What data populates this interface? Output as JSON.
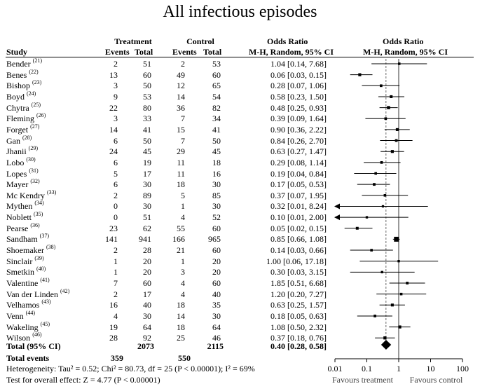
{
  "title": "All infectious episodes",
  "headers": {
    "treatment": "Treatment",
    "control": "Control",
    "or_col": "Odds Ratio",
    "or_plot": "Odds Ratio",
    "study": "Study",
    "events_t": "Events",
    "total_t": "Total",
    "events_c": "Events",
    "total_c": "Total",
    "method_col": "M-H, Random, 95% CI",
    "method_plot": "M-H, Random, 95% CI"
  },
  "studies": [
    {
      "name": "Bender",
      "ref": "(21)",
      "e_t": "2",
      "n_t": "51",
      "e_c": "2",
      "n_c": "53",
      "ci": "1.04 [0.14, 7.68]"
    },
    {
      "name": "Benes",
      "ref": "(22)",
      "e_t": "13",
      "n_t": "60",
      "e_c": "49",
      "n_c": "60",
      "ci": "0.06 [0.03, 0.15]"
    },
    {
      "name": "Bishop",
      "ref": "(23)",
      "e_t": "3",
      "n_t": "50",
      "e_c": "12",
      "n_c": "65",
      "ci": "0.28 [0.07, 1.06]"
    },
    {
      "name": "Boyd",
      "ref": "(24)",
      "e_t": "9",
      "n_t": "53",
      "e_c": "14",
      "n_c": "54",
      "ci": "0.58 [0.23, 1.50]"
    },
    {
      "name": "Chytra",
      "ref": "(25)",
      "e_t": "22",
      "n_t": "80",
      "e_c": "36",
      "n_c": "82",
      "ci": "0.48 [0.25, 0.93]"
    },
    {
      "name": "Fleming",
      "ref": "(26)",
      "e_t": "3",
      "n_t": "33",
      "e_c": "7",
      "n_c": "34",
      "ci": "0.39 [0.09, 1.64]"
    },
    {
      "name": "Forget",
      "ref": "(27)",
      "e_t": "14",
      "n_t": "41",
      "e_c": "15",
      "n_c": "41",
      "ci": "0.90 [0.36, 2.22]"
    },
    {
      "name": "Gan",
      "ref": "(28)",
      "e_t": "6",
      "n_t": "50",
      "e_c": "7",
      "n_c": "50",
      "ci": "0.84 [0.26, 2.70]"
    },
    {
      "name": "Jhanii",
      "ref": "(29)",
      "e_t": "24",
      "n_t": "45",
      "e_c": "29",
      "n_c": "45",
      "ci": "0.63 [0.27, 1.47]"
    },
    {
      "name": "Lobo",
      "ref": "(30)",
      "e_t": "6",
      "n_t": "19",
      "e_c": "11",
      "n_c": "18",
      "ci": "0.29 [0.08, 1.14]"
    },
    {
      "name": "Lopes",
      "ref": "(31)",
      "e_t": "5",
      "n_t": "17",
      "e_c": "11",
      "n_c": "16",
      "ci": "0.19 [0.04, 0.84]"
    },
    {
      "name": "Mayer",
      "ref": "(32)",
      "e_t": "6",
      "n_t": "30",
      "e_c": "18",
      "n_c": "30",
      "ci": "0.17 [0.05, 0.53]"
    },
    {
      "name": "Mc Kendry",
      "ref": "(33)",
      "e_t": "2",
      "n_t": "89",
      "e_c": "5",
      "n_c": "85",
      "ci": "0.37 [0.07, 1.95]"
    },
    {
      "name": "Mythen",
      "ref": "(34)",
      "e_t": "0",
      "n_t": "30",
      "e_c": "1",
      "n_c": "30",
      "ci": "0.32 [0.01, 8.24]"
    },
    {
      "name": "Noblett",
      "ref": "(35)",
      "e_t": "0",
      "n_t": "51",
      "e_c": "4",
      "n_c": "52",
      "ci": "0.10 [0.01, 2.00]"
    },
    {
      "name": "Pearse",
      "ref": "(36)",
      "e_t": "23",
      "n_t": "62",
      "e_c": "55",
      "n_c": "60",
      "ci": "0.05 [0.02, 0.15]"
    },
    {
      "name": "Sandham",
      "ref": "(37)",
      "e_t": "141",
      "n_t": "941",
      "e_c": "166",
      "n_c": "965",
      "ci": "0.85 [0.66, 1.08]"
    },
    {
      "name": "Shoemaker",
      "ref": "(38)",
      "e_t": "2",
      "n_t": "28",
      "e_c": "21",
      "n_c": "60",
      "ci": "0.14 [0.03, 0.66]"
    },
    {
      "name": "Sinclair",
      "ref": "(39)",
      "e_t": "1",
      "n_t": "20",
      "e_c": "1",
      "n_c": "20",
      "ci": "1.00 [0.06, 17.18]"
    },
    {
      "name": "Smetkin",
      "ref": "(40)",
      "e_t": "1",
      "n_t": "20",
      "e_c": "3",
      "n_c": "20",
      "ci": "0.30 [0.03, 3.15]"
    },
    {
      "name": "Valentine",
      "ref": "(41)",
      "e_t": "7",
      "n_t": "60",
      "e_c": "4",
      "n_c": "60",
      "ci": "1.85 [0.51, 6.68]"
    },
    {
      "name": "Van der Linden",
      "ref": "(42)",
      "e_t": "2",
      "n_t": "17",
      "e_c": "4",
      "n_c": "40",
      "ci": "1.20 [0.20, 7.27]"
    },
    {
      "name": "Velhamos",
      "ref": "(43)",
      "e_t": "16",
      "n_t": "40",
      "e_c": "18",
      "n_c": "35",
      "ci": "0.63 [0.25, 1.57]"
    },
    {
      "name": "Venn",
      "ref": "(44)",
      "e_t": "4",
      "n_t": "30",
      "e_c": "14",
      "n_c": "30",
      "ci": "0.18 [0.05, 0.63]"
    },
    {
      "name": "Wakeling",
      "ref": "(45)",
      "e_t": "19",
      "n_t": "64",
      "e_c": "18",
      "n_c": "64",
      "ci": "1.08 [0.50, 2.32]"
    },
    {
      "name": "Wilson",
      "ref": "(46)",
      "e_t": "28",
      "n_t": "92",
      "e_c": "25",
      "n_c": "46",
      "ci": "0.37 [0.18, 0.76]"
    }
  ],
  "total": {
    "label": "Total (95% CI)",
    "n_t": "2073",
    "n_c": "2115",
    "ci": "0.40 [0.28, 0.58]"
  },
  "total_events": {
    "label": "Total events",
    "e_t": "359",
    "e_c": "550"
  },
  "heterogeneity": "Heterogeneity: Tau² = 0.52; Chi² = 80.73, df = 25 (P < 0.00001); I² = 69%",
  "overall_effect": "Test for overall effect: Z = 4.77 (P < 0.00001)",
  "axis": {
    "ticks": [
      0.01,
      0.1,
      1,
      10,
      100
    ],
    "tick_labels": [
      "0.01",
      "0.1",
      "1",
      "10",
      "100"
    ],
    "left_label": "Favours treatment",
    "right_label": "Favours control"
  },
  "chart_data": {
    "type": "forest",
    "title": "All infectious episodes",
    "scale": "log",
    "xlim": [
      0.01,
      100
    ],
    "xlabel_left": "Favours treatment",
    "xlabel_right": "Favours control",
    "estimates": [
      {
        "study": "Bender",
        "or": 1.04,
        "lo": 0.14,
        "hi": 7.68
      },
      {
        "study": "Benes",
        "or": 0.06,
        "lo": 0.03,
        "hi": 0.15
      },
      {
        "study": "Bishop",
        "or": 0.28,
        "lo": 0.07,
        "hi": 1.06
      },
      {
        "study": "Boyd",
        "or": 0.58,
        "lo": 0.23,
        "hi": 1.5
      },
      {
        "study": "Chytra",
        "or": 0.48,
        "lo": 0.25,
        "hi": 0.93
      },
      {
        "study": "Fleming",
        "or": 0.39,
        "lo": 0.09,
        "hi": 1.64
      },
      {
        "study": "Forget",
        "or": 0.9,
        "lo": 0.36,
        "hi": 2.22
      },
      {
        "study": "Gan",
        "or": 0.84,
        "lo": 0.26,
        "hi": 2.7
      },
      {
        "study": "Jhanii",
        "or": 0.63,
        "lo": 0.27,
        "hi": 1.47
      },
      {
        "study": "Lobo",
        "or": 0.29,
        "lo": 0.08,
        "hi": 1.14
      },
      {
        "study": "Lopes",
        "or": 0.19,
        "lo": 0.04,
        "hi": 0.84
      },
      {
        "study": "Mayer",
        "or": 0.17,
        "lo": 0.05,
        "hi": 0.53
      },
      {
        "study": "Mc Kendry",
        "or": 0.37,
        "lo": 0.07,
        "hi": 1.95
      },
      {
        "study": "Mythen",
        "or": 0.32,
        "lo": 0.01,
        "hi": 8.24
      },
      {
        "study": "Noblett",
        "or": 0.1,
        "lo": 0.01,
        "hi": 2.0
      },
      {
        "study": "Pearse",
        "or": 0.05,
        "lo": 0.02,
        "hi": 0.15
      },
      {
        "study": "Sandham",
        "or": 0.85,
        "lo": 0.66,
        "hi": 1.08
      },
      {
        "study": "Shoemaker",
        "or": 0.14,
        "lo": 0.03,
        "hi": 0.66
      },
      {
        "study": "Sinclair",
        "or": 1.0,
        "lo": 0.06,
        "hi": 17.18
      },
      {
        "study": "Smetkin",
        "or": 0.3,
        "lo": 0.03,
        "hi": 3.15
      },
      {
        "study": "Valentine",
        "or": 1.85,
        "lo": 0.51,
        "hi": 6.68
      },
      {
        "study": "Van der Linden",
        "or": 1.2,
        "lo": 0.2,
        "hi": 7.27
      },
      {
        "study": "Velhamos",
        "or": 0.63,
        "lo": 0.25,
        "hi": 1.57
      },
      {
        "study": "Venn",
        "or": 0.18,
        "lo": 0.05,
        "hi": 0.63
      },
      {
        "study": "Wakeling",
        "or": 1.08,
        "lo": 0.5,
        "hi": 2.32
      },
      {
        "study": "Wilson",
        "or": 0.37,
        "lo": 0.18,
        "hi": 0.76
      }
    ],
    "pooled": {
      "or": 0.4,
      "lo": 0.28,
      "hi": 0.58
    }
  }
}
